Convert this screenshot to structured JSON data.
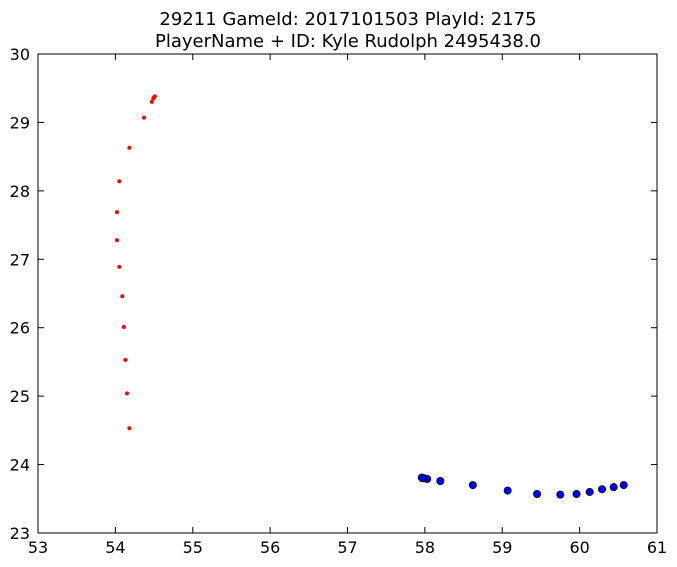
{
  "chart_data": {
    "type": "scatter",
    "title": [
      "29211 GameId: 2017101503 PlayId: 2175",
      "PlayerName + ID: Kyle Rudolph 2495438.0"
    ],
    "xlabel": "",
    "ylabel": "",
    "xlim": [
      53,
      61
    ],
    "ylim": [
      23,
      30
    ],
    "xticks": [
      53,
      54,
      55,
      56,
      57,
      58,
      59,
      60,
      61
    ],
    "yticks": [
      23,
      24,
      25,
      26,
      27,
      28,
      29,
      30
    ],
    "grid": false,
    "legend": "none",
    "series": [
      {
        "color": "#ff0000",
        "marker": "small-dot",
        "x": [
          54.18,
          54.15,
          54.13,
          54.11,
          54.09,
          54.05,
          54.02,
          54.02,
          54.05,
          54.18,
          54.37,
          54.47,
          54.49,
          54.5,
          54.51
        ],
        "y": [
          24.53,
          25.04,
          25.53,
          26.01,
          26.46,
          26.89,
          27.28,
          27.69,
          28.14,
          28.63,
          29.07,
          29.3,
          29.35,
          29.37,
          29.38
        ]
      },
      {
        "color": "#0000ff",
        "marker": "circle",
        "x": [
          60.57,
          60.44,
          60.29,
          60.13,
          59.96,
          59.75,
          59.45,
          59.07,
          58.62,
          58.2,
          58.03,
          57.99,
          57.97,
          57.96
        ],
        "y": [
          23.7,
          23.67,
          23.64,
          23.6,
          23.57,
          23.56,
          23.57,
          23.62,
          23.7,
          23.76,
          23.79,
          23.8,
          23.8,
          23.81
        ]
      }
    ]
  }
}
